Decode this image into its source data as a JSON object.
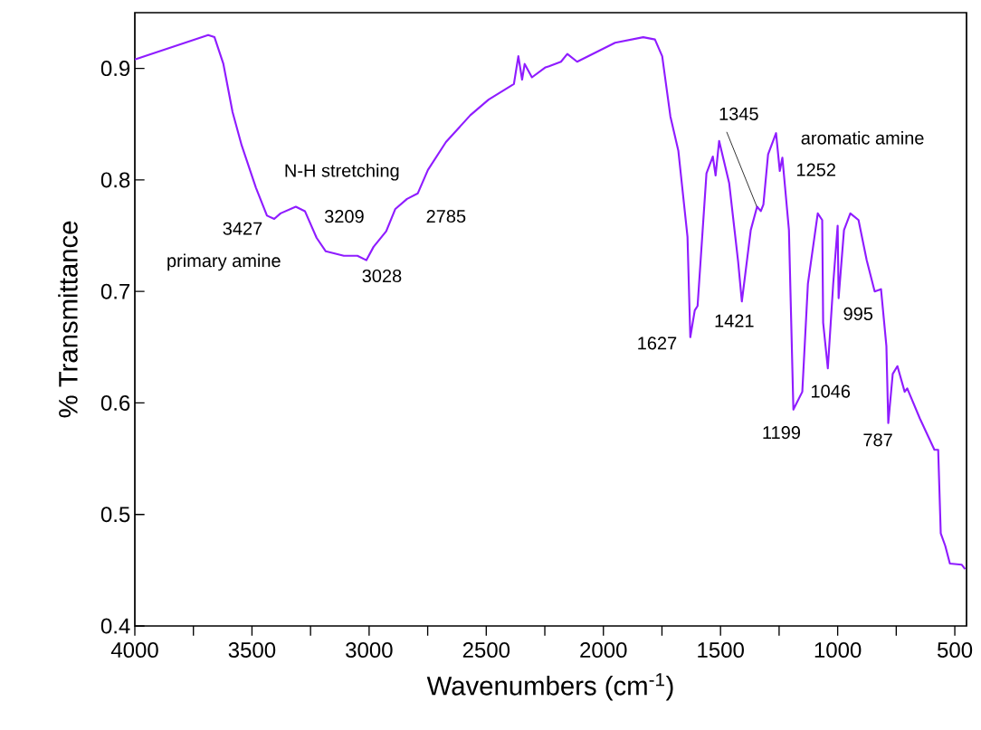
{
  "chart_data": {
    "type": "line",
    "xlabel": "Wavenumbers (cm$^{-1}$)",
    "ylabel": "% Transmittance",
    "xlim": [
      4000,
      450
    ],
    "ylim": [
      0.4,
      0.95
    ],
    "xticks": [
      4000,
      {
        "value": 3750,
        "label": null
      },
      3500,
      {
        "value": 3250,
        "label": null
      },
      3000,
      {
        "value": 2750,
        "label": null
      },
      2500,
      {
        "value": 2250,
        "label": null
      },
      2000,
      {
        "value": 1750,
        "label": null
      },
      1500,
      {
        "value": 1250,
        "label": null
      },
      1000,
      {
        "value": 750,
        "label": null
      },
      500
    ],
    "yticks": [
      0.4,
      0.5,
      0.6,
      0.7,
      0.8,
      0.9
    ],
    "series": [
      {
        "color": "#8f1cff",
        "x": [
          4000,
          3687,
          3660,
          3622,
          3583,
          3544,
          3483,
          3436,
          3405,
          3378,
          3313,
          3274,
          3224,
          3185,
          3108,
          3050,
          3012,
          2981,
          2927,
          2888,
          2838,
          2792,
          2749,
          2672,
          2568,
          2490,
          2382,
          2363,
          2347,
          2336,
          2305,
          2247,
          2232,
          2181,
          2154,
          2112,
          1950,
          1830,
          1780,
          1749,
          1714,
          1680,
          1641,
          1629,
          1610,
          1598,
          1560,
          1533,
          1521,
          1506,
          1463,
          1425,
          1409,
          1371,
          1344,
          1328,
          1317,
          1297,
          1263,
          1247,
          1236,
          1208,
          1189,
          1151,
          1127,
          1085,
          1066,
          1062,
          1042,
          1019,
          1000,
          996,
          973,
          946,
          911,
          876,
          842,
          815,
          792,
          784,
          765,
          745,
          714,
          703,
          649,
          587,
          571,
          560,
          541,
          521,
          471,
          456
        ],
        "values": [
          0.908,
          0.93,
          0.928,
          0.904,
          0.861,
          0.831,
          0.793,
          0.768,
          0.765,
          0.77,
          0.776,
          0.772,
          0.748,
          0.736,
          0.732,
          0.732,
          0.728,
          0.74,
          0.754,
          0.774,
          0.783,
          0.788,
          0.809,
          0.834,
          0.858,
          0.872,
          0.886,
          0.911,
          0.89,
          0.904,
          0.892,
          0.901,
          0.902,
          0.906,
          0.913,
          0.906,
          0.923,
          0.928,
          0.926,
          0.911,
          0.857,
          0.826,
          0.749,
          0.659,
          0.683,
          0.687,
          0.806,
          0.821,
          0.804,
          0.835,
          0.797,
          0.727,
          0.691,
          0.755,
          0.776,
          0.772,
          0.778,
          0.823,
          0.842,
          0.808,
          0.82,
          0.755,
          0.594,
          0.61,
          0.707,
          0.77,
          0.764,
          0.672,
          0.631,
          0.707,
          0.759,
          0.694,
          0.755,
          0.77,
          0.764,
          0.728,
          0.7,
          0.702,
          0.651,
          0.582,
          0.626,
          0.633,
          0.61,
          0.613,
          0.586,
          0.558,
          0.558,
          0.483,
          0.472,
          0.456,
          0.455,
          0.451
        ]
      }
    ],
    "annotations": [
      "primary amine",
      "N-H stretching",
      "aromatic amine",
      {
        "text": "3427",
        "x": 3427,
        "y": 0.765
      },
      {
        "text": "3209",
        "x": 3209,
        "y": 0.75
      },
      {
        "text": "3028",
        "x": 3028,
        "y": 0.728
      },
      {
        "text": "2785",
        "x": 2785,
        "y": 0.788
      },
      {
        "text": "1627",
        "x": 1627,
        "y": 0.659
      },
      {
        "text": "1421",
        "x": 1421,
        "y": 0.691
      },
      {
        "text": "1345",
        "x": 1345,
        "y": 0.776
      },
      {
        "text": "1252",
        "x": 1252,
        "y": 0.808
      },
      {
        "text": "1199",
        "x": 1199,
        "y": 0.594
      },
      {
        "text": "1046",
        "x": 1046,
        "y": 0.631
      },
      {
        "text": "995",
        "x": 995,
        "y": 0.694
      },
      {
        "text": "787",
        "x": 787,
        "y": 0.582
      }
    ]
  }
}
